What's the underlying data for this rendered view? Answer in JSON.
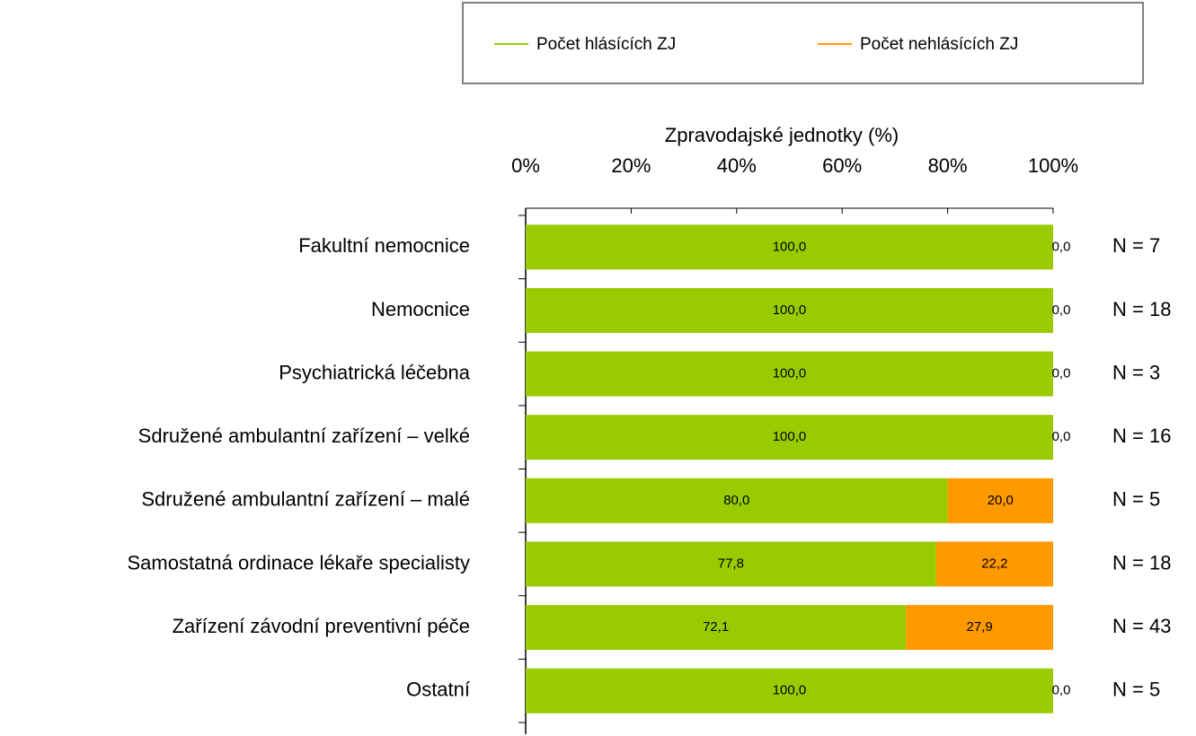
{
  "chart_data": {
    "type": "stacked_bar_horizontal",
    "x_label": "Zpravodajské jednotky (%)",
    "categories": [
      "Fakultní nemocnice",
      "Nemocnice",
      "Psychiatrická léčebna",
      "Sdružené ambulantní zařízení – velké",
      "Sdružené ambulantní zařízení – malé",
      "Samostatná ordinace lékaře specialisty",
      "Zařízení závodní preventivní péče",
      "Ostatní"
    ],
    "series": [
      {
        "name": "Počet hlásících ZJ",
        "color": "#99cc00",
        "values": [
          100,
          100,
          100,
          100,
          80,
          77.8,
          72.1,
          100
        ],
        "value_labels": [
          "100,0",
          "100,0",
          "100,0",
          "100,0",
          "80,0",
          "77,8",
          "72,1",
          "100,0"
        ]
      },
      {
        "name": "Počet nehlásících ZJ",
        "color": "#ff9900",
        "values": [
          0,
          0,
          0,
          0,
          20,
          22.2,
          27.9,
          0
        ],
        "value_labels": [
          "0,0",
          "0,0",
          "0,0",
          "0,0",
          "20,0",
          "22,2",
          "27,9",
          "0,0"
        ]
      }
    ],
    "annotations": [
      "N = 7",
      "N = 18",
      "N = 3",
      "N = 16",
      "N = 5",
      "N = 18",
      "N = 43",
      "N = 5"
    ],
    "xlim": [
      0,
      100
    ],
    "xticks": [
      {
        "value": 0,
        "label": "0%"
      },
      {
        "value": 20,
        "label": "20%"
      },
      {
        "value": 40,
        "label": "40%"
      },
      {
        "value": 60,
        "label": "60%"
      },
      {
        "value": 80,
        "label": "80%"
      },
      {
        "value": 100,
        "label": "100%"
      }
    ],
    "legend": "top"
  }
}
